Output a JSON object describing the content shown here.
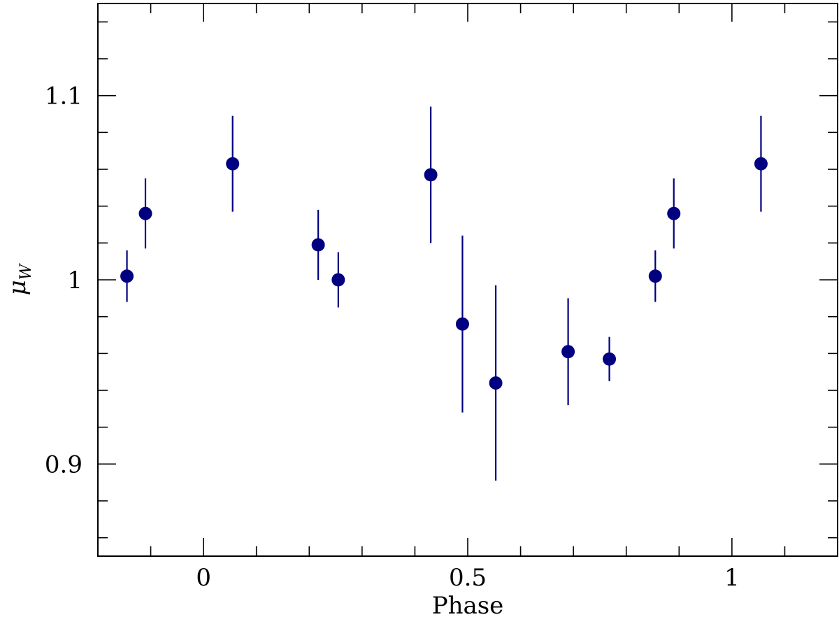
{
  "chart_data": {
    "type": "scatter",
    "xlabel": "Phase",
    "ylabel": "μ",
    "ylabel_subscript": "W",
    "xlim": [
      -0.2,
      1.2
    ],
    "ylim": [
      0.85,
      1.15
    ],
    "x_ticks": [
      {
        "value": 0,
        "label": "0"
      },
      {
        "value": 0.5,
        "label": "0.5"
      },
      {
        "value": 1,
        "label": "1"
      }
    ],
    "y_ticks": [
      {
        "value": 0.9,
        "label": "0.9"
      },
      {
        "value": 1.0,
        "label": "1"
      },
      {
        "value": 1.1,
        "label": "1.1"
      }
    ],
    "x_minor_step": 0.1,
    "y_minor_step": 0.02,
    "marker_color": "#000080",
    "points": [
      {
        "x": -0.145,
        "y": 1.002,
        "err_low": 0.988,
        "err_high": 1.016
      },
      {
        "x": -0.11,
        "y": 1.036,
        "err_low": 1.017,
        "err_high": 1.055
      },
      {
        "x": 0.055,
        "y": 1.063,
        "err_low": 1.037,
        "err_high": 1.089
      },
      {
        "x": 0.217,
        "y": 1.019,
        "err_low": 1.0,
        "err_high": 1.038
      },
      {
        "x": 0.255,
        "y": 1.0,
        "err_low": 0.985,
        "err_high": 1.015
      },
      {
        "x": 0.43,
        "y": 1.057,
        "err_low": 1.02,
        "err_high": 1.094
      },
      {
        "x": 0.49,
        "y": 0.976,
        "err_low": 0.928,
        "err_high": 1.024
      },
      {
        "x": 0.553,
        "y": 0.944,
        "err_low": 0.891,
        "err_high": 0.997
      },
      {
        "x": 0.69,
        "y": 0.961,
        "err_low": 0.932,
        "err_high": 0.99
      },
      {
        "x": 0.768,
        "y": 0.957,
        "err_low": 0.945,
        "err_high": 0.969
      },
      {
        "x": 0.855,
        "y": 1.002,
        "err_low": 0.988,
        "err_high": 1.016
      },
      {
        "x": 0.89,
        "y": 1.036,
        "err_low": 1.017,
        "err_high": 1.055
      },
      {
        "x": 1.055,
        "y": 1.063,
        "err_low": 1.037,
        "err_high": 1.089
      }
    ]
  }
}
